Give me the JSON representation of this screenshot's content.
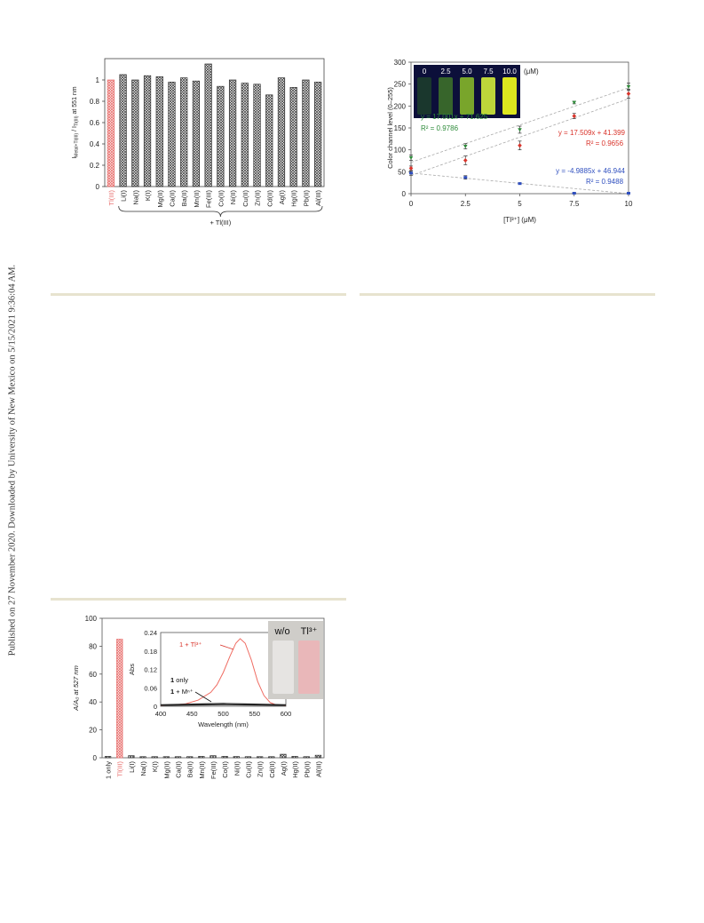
{
  "page": {
    "watermark": "Published on 27 November 2020. Downloaded by University of New Mexico on 5/15/2021 9:36:04 AM."
  },
  "colors": {
    "highlight": "#e8706e",
    "green": "#2e8b3a",
    "red": "#d9342b",
    "blue": "#2f4fbf",
    "rule": "#e7e3cf"
  },
  "chart_data": [
    {
      "id": "chart-a",
      "type": "bar",
      "ylabel": "I_{Metal+Tl(III)} / I_{Tl(III)} at 551 nm",
      "ylabel_parts": {
        "main": "I",
        "sub1": "Metal+Tl(III)",
        "mid": " / I",
        "sub2": "Tl(III)",
        "tail": " at 551 nm"
      },
      "ylim": [
        0,
        1.2
      ],
      "yticks": [
        "0",
        "0.2",
        "0.4",
        "0.6",
        "0.8",
        "1"
      ],
      "yticks_values": [
        0,
        0.2,
        0.4,
        0.6,
        0.8,
        1.0
      ],
      "categories": [
        "Tl(III)",
        "Li(I)",
        "Na(I)",
        "K(I)",
        "Mg(II)",
        "Ca(II)",
        "Ba(II)",
        "Mn(II)",
        "Fe(III)",
        "Co(II)",
        "Ni(II)",
        "Cu(II)",
        "Zn(II)",
        "Cd(II)",
        "Ag(I)",
        "Hg(II)",
        "Pb(II)",
        "Al(III)"
      ],
      "values": [
        1.0,
        1.05,
        1.0,
        1.04,
        1.03,
        0.98,
        1.02,
        0.99,
        1.15,
        0.94,
        1.0,
        0.97,
        0.96,
        0.86,
        1.02,
        0.93,
        1.0,
        0.98
      ],
      "highlight_index": 0,
      "group_label": "+ Tl(III)"
    },
    {
      "id": "chart-b",
      "type": "scatter",
      "xlabel": "[Tl³⁺] (μM)",
      "ylabel": "Color channel level (0–255)",
      "xlim": [
        0,
        10
      ],
      "ylim": [
        0,
        300
      ],
      "xticks": [
        "0",
        "2.5",
        "5",
        "7.5",
        "10"
      ],
      "xticks_values": [
        0,
        2.5,
        5,
        7.5,
        10
      ],
      "yticks": [
        "0",
        "50",
        "100",
        "150",
        "200",
        "250",
        "300"
      ],
      "yticks_values": [
        0,
        50,
        100,
        150,
        200,
        250,
        300
      ],
      "x": [
        0,
        2.5,
        5,
        7.5,
        10
      ],
      "series": [
        {
          "color": "green",
          "values": [
            82,
            108,
            146,
            208,
            244
          ],
          "errors": [
            6,
            6,
            8,
            3,
            8
          ],
          "fit": {
            "slope": 17.001,
            "intercept": 71.625
          },
          "equation": "y = 17.001x + 71.625",
          "r2": "R² = 0.9786"
        },
        {
          "color": "red",
          "values": [
            58,
            76,
            110,
            177,
            228
          ],
          "errors": [
            5,
            10,
            10,
            6,
            10
          ],
          "fit": {
            "slope": 17.509,
            "intercept": 41.399
          },
          "equation": "y = 17.509x + 41.399",
          "r2": "R² = 0.9656"
        },
        {
          "color": "blue",
          "values": [
            47,
            37,
            23,
            1,
            1
          ],
          "errors": [
            5,
            4,
            2,
            1,
            1
          ],
          "fit": {
            "slope": -4.9885,
            "intercept": 46.944
          },
          "equation": "y = -4.9885x + 46.944",
          "r2": "R² = 0.9488"
        }
      ],
      "inset_labels": [
        "0",
        "2.5",
        "5.0",
        "7.5",
        "10.0"
      ],
      "inset_unit": "(μM)",
      "inset_vial_colors": [
        "#1b3a2c",
        "#3a6a2a",
        "#7fae2a",
        "#c8e03a",
        "#e8f21e"
      ]
    },
    {
      "id": "chart-c",
      "type": "bar",
      "ylabel": "A/A₀ at 527 nm",
      "ylim": [
        0,
        100
      ],
      "yticks": [
        "0",
        "20",
        "40",
        "60",
        "80",
        "100"
      ],
      "yticks_values": [
        0,
        20,
        40,
        60,
        80,
        100
      ],
      "categories": [
        "1 only",
        "Tl(III)",
        "Li(I)",
        "Na(I)",
        "K(I)",
        "Mg(II)",
        "Ca(II)",
        "Ba(II)",
        "Mn(II)",
        "Fe(III)",
        "Co(II)",
        "Ni(II)",
        "Cu(II)",
        "Zn(II)",
        "Cd(II)",
        "Ag(I)",
        "Hg(II)",
        "Pb(II)",
        "Al(III)"
      ],
      "values": [
        1,
        85,
        1.5,
        0.8,
        0.8,
        0.8,
        0.8,
        0.8,
        1.0,
        1.5,
        1.0,
        0.9,
        0.8,
        0.8,
        0.8,
        2.5,
        1.0,
        0.8,
        1.8
      ],
      "highlight_index": 1,
      "inset": {
        "type": "line",
        "xlabel": "Wavelength (nm)",
        "ylabel": "Abs",
        "xlim": [
          400,
          600
        ],
        "ylim": [
          0,
          0.24
        ],
        "xticks": [
          "400",
          "450",
          "500",
          "550",
          "600"
        ],
        "xticks_values": [
          400,
          450,
          500,
          550,
          600
        ],
        "yticks": [
          "0",
          "0.06",
          "0.12",
          "0.18",
          "0.24"
        ],
        "yticks_values": [
          0,
          0.06,
          0.12,
          0.18,
          0.24
        ],
        "series": [
          {
            "name": "1 + Tl³⁺",
            "color": "red",
            "x": [
              400,
              420,
              440,
              460,
              480,
              490,
              500,
              510,
              520,
              527,
              535,
              545,
              555,
              565,
              575,
              585,
              600
            ],
            "y": [
              0.002,
              0.004,
              0.008,
              0.02,
              0.045,
              0.07,
              0.11,
              0.16,
              0.205,
              0.22,
              0.205,
              0.15,
              0.08,
              0.035,
              0.012,
              0.004,
              0.002
            ]
          },
          {
            "name": "1 only",
            "color": "black",
            "x": [
              400,
              450,
              500,
              550,
              600
            ],
            "y": [
              0.003,
              0.004,
              0.005,
              0.004,
              0.003
            ]
          },
          {
            "name": "1 + Mⁿ⁺",
            "color": "black",
            "x": [
              400,
              450,
              500,
              550,
              600
            ],
            "y": [
              0.005,
              0.007,
              0.009,
              0.007,
              0.005
            ]
          }
        ],
        "labels": {
          "tl": "1 + Tl³⁺",
          "only_bold": "1",
          "only_rest": " only",
          "mn_bold": "1",
          "mn_rest": " + Mⁿ⁺"
        }
      },
      "photo_labels": [
        "w/o",
        "Tl³⁺"
      ]
    }
  ]
}
